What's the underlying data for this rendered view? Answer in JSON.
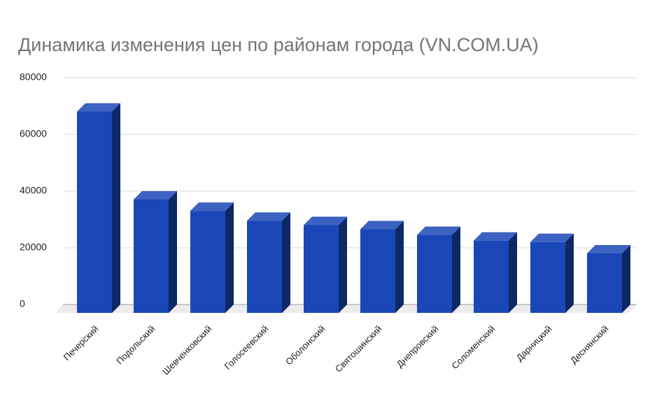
{
  "chart_data": {
    "type": "bar3d",
    "title": "Динамика изменения цен по районам города (VN.COM.UA)",
    "categories": [
      "Печерский",
      "Подольский",
      "Шевченковский",
      "Голосеевский",
      "Оболонский",
      "Святошинский",
      "Днепровский",
      "Соломенский",
      "Дарницкий",
      "Деснянский"
    ],
    "values": [
      71000,
      40000,
      36000,
      32500,
      31000,
      29500,
      27500,
      25500,
      25000,
      21000
    ],
    "color": "#1a47b8",
    "ylim": [
      0,
      80000
    ],
    "yticks": [
      0,
      20000,
      40000,
      60000,
      80000
    ],
    "grid": true
  }
}
